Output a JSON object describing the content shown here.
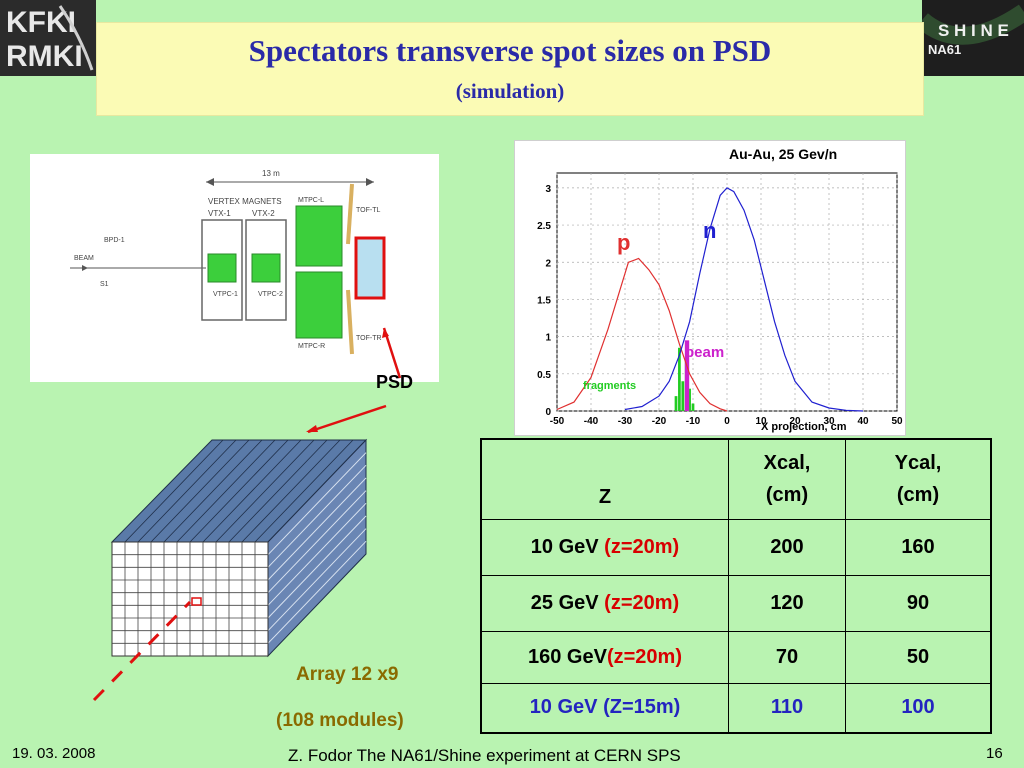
{
  "logos": {
    "left_text_top": "KFKI",
    "left_text_bottom": "RMKI",
    "right_text_top": "S H I N E",
    "right_text_bottom": "NA61"
  },
  "slide": {
    "title": "Spectators transverse spot sizes on PSD",
    "subtitle": "(simulation)"
  },
  "detector_diagram": {
    "length_label": "13 m",
    "vertex_magnets": "VERTEX MAGNETS",
    "vtx1": "VTX-1",
    "vtx2": "VTX-2",
    "mtpc_l": "MTPC-L",
    "mtpc_r": "MTPC-R",
    "vtpc1": "VTPC-1",
    "vtpc2": "VTPC-2",
    "tof_tl": "TOF-TL",
    "tof_tr": "TOF-TR",
    "beam": "BEAM",
    "bpd1": "BPD-1",
    "s1": "S1",
    "psd_label": "PSD"
  },
  "chart_data": {
    "type": "line",
    "title": "Au-Au, 25 Gev/n",
    "xlabel": "X projection, cm",
    "ylabel": "",
    "xlim": [
      -50,
      50
    ],
    "ylim": [
      0,
      3.2
    ],
    "x_ticks": [
      -50,
      -40,
      -30,
      -20,
      -10,
      0,
      10,
      20,
      30,
      40,
      50
    ],
    "y_ticks": [
      0,
      0.5,
      1,
      1.5,
      2,
      2.5,
      3
    ],
    "grid": true,
    "series": [
      {
        "name": "p",
        "color": "#e03030",
        "x": [
          -50,
          -45,
          -40,
          -35,
          -32,
          -29,
          -26,
          -23,
          -20,
          -17,
          -14,
          -11,
          -8,
          -5,
          -2,
          0
        ],
        "y": [
          0.02,
          0.12,
          0.45,
          1.1,
          1.55,
          2.0,
          2.05,
          1.9,
          1.7,
          1.35,
          0.9,
          0.5,
          0.25,
          0.1,
          0.03,
          0.0
        ]
      },
      {
        "name": "n",
        "color": "#2020d0",
        "x": [
          -30,
          -25,
          -20,
          -17,
          -14,
          -11,
          -8,
          -5,
          -2,
          0,
          2,
          5,
          8,
          11,
          14,
          17,
          20,
          25,
          30,
          35,
          40
        ],
        "y": [
          0.02,
          0.06,
          0.2,
          0.4,
          0.75,
          1.2,
          1.85,
          2.45,
          2.9,
          3.0,
          2.95,
          2.7,
          2.3,
          1.75,
          1.2,
          0.75,
          0.4,
          0.12,
          0.04,
          0.01,
          0.0
        ]
      }
    ],
    "bars": {
      "fragments": {
        "color": "#22cc22",
        "x": [
          -15,
          -14,
          -13,
          -12,
          -11,
          -10
        ],
        "y": [
          0.2,
          0.85,
          0.4,
          0.7,
          0.3,
          0.1
        ]
      },
      "beam": {
        "color": "#cc22cc",
        "x": [
          -12
        ],
        "y": [
          0.95
        ]
      }
    },
    "annotations": {
      "p": "p",
      "n": "n",
      "beam": "beam",
      "fragments": "fragments"
    }
  },
  "table": {
    "header": {
      "z": "Z",
      "xcal_1": "Xcal,",
      "xcal_2": "(cm)",
      "ycal_1": "Ycal,",
      "ycal_2": "(cm)"
    },
    "rows": [
      {
        "energy": "10 GeV ",
        "z": "(z=20m)",
        "xcal": "200",
        "ycal": "160"
      },
      {
        "energy": "25 GeV ",
        "z": "(z=20m)",
        "xcal": "120",
        "ycal": "90"
      },
      {
        "energy": "160 GeV",
        "z": "(z=20m)",
        "xcal": "70",
        "ycal": "50"
      },
      {
        "energy": "10 GeV (Z=15m)",
        "z": "",
        "xcal": "110",
        "ycal": "100"
      }
    ]
  },
  "array_labels": {
    "array": "Array 12 x9",
    "modules": "(108 modules)"
  },
  "footer": {
    "date": "19. 03. 2008",
    "title": "Z. Fodor The NA61/Shine experiment at CERN SPS",
    "page": "16"
  }
}
